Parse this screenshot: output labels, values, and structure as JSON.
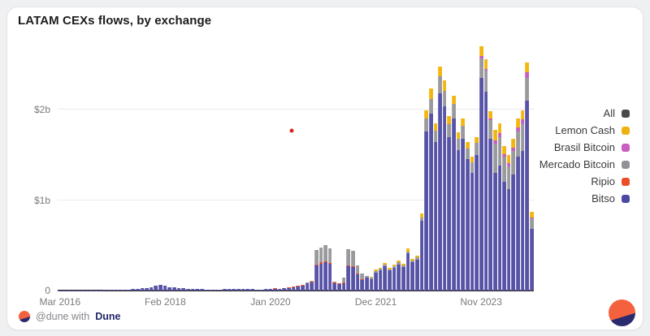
{
  "card": {
    "title": "LATAM CEXs flows, by exchange"
  },
  "legend": {
    "position": "right",
    "items": [
      {
        "label": "All",
        "color": "#4a4a4c"
      },
      {
        "label": "Lemon Cash",
        "color": "#ecb20e"
      },
      {
        "label": "Brasil Bitcoin",
        "color": "#c75fc0"
      },
      {
        "label": "Mercado Bitcoin",
        "color": "#929296"
      },
      {
        "label": "Ripio",
        "color": "#ea4e28"
      },
      {
        "label": "Bitso",
        "color": "#4b48a2"
      }
    ]
  },
  "footer": {
    "attribution_prefix": "@dune with",
    "attribution_brand": "Dune",
    "logo_icon": "dune-logo",
    "colors": {
      "logo_top": "#f4613e",
      "logo_bottom": "#2b2a6e",
      "brand_text": "#24276b",
      "prefix_text": "#86868c"
    }
  },
  "chart_data": {
    "type": "bar",
    "stacked": true,
    "title": "LATAM CEXs flows, by exchange",
    "unit": "USD millions",
    "grid": true,
    "legend_position": "right",
    "x_axis": {
      "bar_count": 104,
      "tick_labels": [
        {
          "index": 0,
          "label": "Mar 2016"
        },
        {
          "index": 23,
          "label": "Feb 2018"
        },
        {
          "index": 46,
          "label": "Jan 2020"
        },
        {
          "index": 69,
          "label": "Dec 2021"
        },
        {
          "index": 92,
          "label": "Nov 2023"
        }
      ]
    },
    "y_axis": {
      "ylim": [
        0,
        2880
      ],
      "ticks": [
        {
          "value": 0,
          "label": "0"
        },
        {
          "value": 1000,
          "label": "$1b"
        },
        {
          "value": 2000,
          "label": "$2b"
        }
      ]
    },
    "series": [
      {
        "name": "Bitso",
        "color": "#5753a7",
        "values": [
          1,
          1,
          2,
          2,
          2,
          3,
          3,
          3,
          4,
          4,
          5,
          5,
          6,
          7,
          9,
          11,
          14,
          18,
          24,
          30,
          38,
          52,
          66,
          50,
          40,
          33,
          28,
          24,
          20,
          18,
          16,
          14,
          12,
          11,
          12,
          12,
          14,
          16,
          20,
          22,
          19,
          17,
          14,
          13,
          12,
          14,
          20,
          22,
          19,
          25,
          31,
          37,
          48,
          56,
          78,
          90,
          280,
          300,
          310,
          300,
          85,
          75,
          85,
          270,
          260,
          180,
          120,
          140,
          130,
          195,
          225,
          270,
          220,
          250,
          290,
          260,
          410,
          310,
          340,
          770,
          1760,
          1960,
          1640,
          2180,
          2040,
          1700,
          1900,
          1550,
          1680,
          1450,
          1300,
          1500,
          2350,
          2200,
          1680,
          1300,
          1380,
          1200,
          1120,
          1280,
          1480,
          1540,
          2100,
          680
        ]
      },
      {
        "name": "Ripio",
        "color": "#ea4e28",
        "values": [
          0,
          0,
          0,
          0,
          0,
          0,
          0,
          0,
          0,
          0,
          0,
          0,
          0,
          0,
          0,
          0,
          0,
          0,
          0,
          0,
          0,
          0,
          0,
          0,
          0,
          0,
          0,
          0,
          0,
          0,
          0,
          0,
          0,
          0,
          0,
          0,
          0,
          0,
          0,
          0,
          0,
          0,
          0,
          0,
          0,
          0,
          2,
          3,
          2,
          3,
          4,
          5,
          4,
          4,
          5,
          6,
          8,
          10,
          10,
          8,
          2,
          2,
          5,
          8,
          8,
          5,
          2,
          0,
          0,
          0,
          0,
          0,
          0,
          0,
          0,
          0,
          0,
          0,
          0,
          0,
          0,
          0,
          0,
          0,
          0,
          0,
          0,
          0,
          0,
          0,
          0,
          0,
          0,
          0,
          0,
          0,
          0,
          0,
          0,
          0,
          0,
          0,
          0,
          0
        ]
      },
      {
        "name": "Mercado Bitcoin",
        "color": "#9a9a9e",
        "values": [
          0,
          0,
          0,
          0,
          0,
          0,
          0,
          0,
          0,
          0,
          0,
          0,
          0,
          0,
          0,
          0,
          0,
          0,
          0,
          0,
          0,
          0,
          0,
          0,
          0,
          0,
          0,
          0,
          0,
          0,
          0,
          0,
          0,
          0,
          0,
          0,
          0,
          0,
          0,
          0,
          0,
          0,
          0,
          0,
          0,
          0,
          0,
          0,
          0,
          0,
          0,
          0,
          3,
          5,
          7,
          9,
          157,
          170,
          180,
          157,
          8,
          8,
          55,
          182,
          172,
          90,
          63,
          25,
          15,
          20,
          15,
          15,
          15,
          15,
          20,
          20,
          25,
          20,
          25,
          40,
          140,
          160,
          130,
          190,
          170,
          140,
          160,
          130,
          140,
          120,
          120,
          130,
          220,
          230,
          200,
          320,
          320,
          280,
          250,
          260,
          280,
          300,
          250,
          120
        ]
      },
      {
        "name": "Brasil Bitcoin",
        "color": "#c75fc0",
        "values": [
          0,
          0,
          0,
          0,
          0,
          0,
          0,
          0,
          0,
          0,
          0,
          0,
          0,
          0,
          0,
          0,
          0,
          0,
          0,
          0,
          0,
          0,
          0,
          0,
          0,
          0,
          0,
          0,
          0,
          0,
          0,
          0,
          0,
          0,
          0,
          0,
          0,
          0,
          0,
          0,
          0,
          0,
          0,
          0,
          0,
          0,
          0,
          0,
          0,
          0,
          0,
          0,
          0,
          0,
          0,
          0,
          0,
          0,
          0,
          0,
          0,
          0,
          0,
          0,
          0,
          0,
          0,
          0,
          0,
          0,
          0,
          0,
          0,
          0,
          0,
          0,
          0,
          0,
          0,
          0,
          0,
          0,
          0,
          0,
          0,
          0,
          0,
          0,
          0,
          0,
          0,
          0,
          20,
          20,
          20,
          40,
          40,
          30,
          40,
          40,
          40,
          50,
          60,
          10
        ]
      },
      {
        "name": "Lemon Cash",
        "color": "#f2b60f",
        "values": [
          0,
          0,
          0,
          0,
          0,
          0,
          0,
          0,
          0,
          0,
          0,
          0,
          0,
          0,
          0,
          0,
          0,
          0,
          0,
          0,
          0,
          0,
          0,
          0,
          0,
          0,
          0,
          0,
          0,
          0,
          0,
          0,
          0,
          0,
          0,
          0,
          0,
          0,
          0,
          0,
          0,
          0,
          0,
          0,
          0,
          0,
          0,
          0,
          0,
          0,
          0,
          0,
          0,
          0,
          0,
          0,
          0,
          0,
          0,
          0,
          0,
          0,
          0,
          0,
          0,
          0,
          0,
          0,
          10,
          15,
          15,
          20,
          15,
          20,
          20,
          20,
          30,
          20,
          25,
          40,
          90,
          110,
          80,
          110,
          110,
          90,
          90,
          70,
          80,
          70,
          60,
          70,
          110,
          110,
          80,
          120,
          110,
          90,
          90,
          100,
          100,
          100,
          110,
          60
        ]
      }
    ],
    "annotations": {
      "stray_point": {
        "x_frac": 0.491,
        "y_value": 1766,
        "color": "#e02424"
      }
    }
  }
}
